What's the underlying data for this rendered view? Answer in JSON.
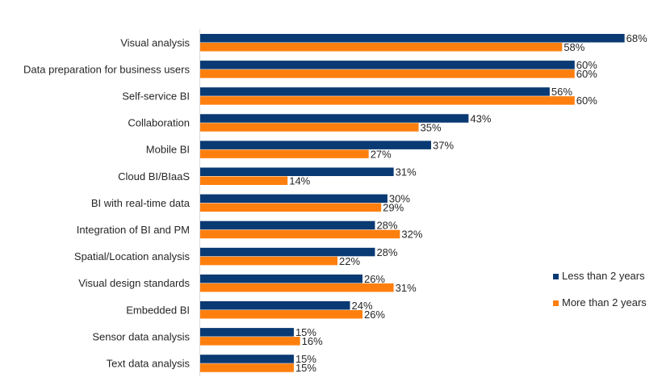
{
  "chart_data": {
    "type": "bar",
    "orientation": "horizontal",
    "categories": [
      "Visual analysis",
      "Data preparation for business users",
      "Self-service BI",
      "Collaboration",
      "Mobile BI",
      "Cloud BI/BIaaS",
      "BI with real-time data",
      "Integration of BI and PM",
      "Spatial/Location analysis",
      "Visual design standards",
      "Embedded BI",
      "Sensor data analysis",
      "Text data analysis"
    ],
    "series": [
      {
        "name": "Less than 2 years",
        "color": "#0a3a73",
        "values": [
          68,
          60,
          56,
          43,
          37,
          31,
          30,
          28,
          28,
          26,
          24,
          15,
          15
        ]
      },
      {
        "name": "More than 2 years",
        "color": "#ff7f0e",
        "values": [
          58,
          60,
          60,
          35,
          27,
          14,
          29,
          32,
          22,
          31,
          26,
          16,
          15
        ]
      }
    ],
    "value_suffix": "%",
    "xlim": [
      0,
      100
    ],
    "grid": false,
    "legend_position": "right",
    "title": "",
    "xlabel": "",
    "ylabel": ""
  }
}
